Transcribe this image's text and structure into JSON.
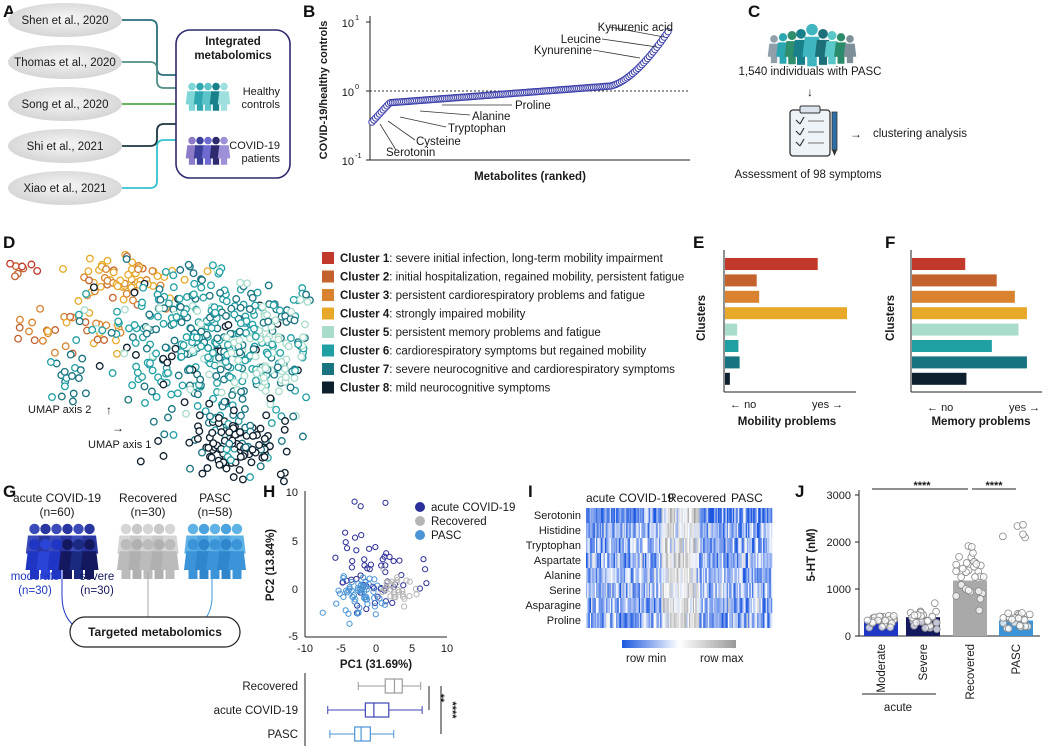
{
  "panel_labels": [
    "A",
    "B",
    "C",
    "D",
    "E",
    "F",
    "G",
    "H",
    "I",
    "J"
  ],
  "panelA": {
    "studies": [
      "Shen et al., 2020",
      "Thomas et al., 2020",
      "Song et al., 2020",
      "Shi et al., 2021",
      "Xiao et al., 2021"
    ],
    "box_title_1": "Integrated",
    "box_title_2": "metabolomics",
    "group1_line1": "Healthy",
    "group1_line2": "controls",
    "group2_line1": "COVID-19",
    "group2_line2": "patients",
    "line_colors": [
      "#2a6f7a",
      "#4f8f86",
      "#4ea84a",
      "#1c3640",
      "#35c2d0"
    ]
  },
  "panelB": {
    "ylabel": "COVID-19/healthy controls",
    "xlabel": "Metabolites (ranked)",
    "ytick_base": [
      "10",
      "10",
      "10"
    ],
    "ytick_exp": [
      "1",
      "0",
      "-1"
    ],
    "annotations": [
      "Kynurenic acid",
      "Leucine",
      "Kynurenine",
      "Proline",
      "Alanine",
      "Tryptophan",
      "Cysteine",
      "Serotonin"
    ],
    "chart_data": {
      "type": "scatter",
      "title": "",
      "xlabel": "Metabolites (ranked)",
      "ylabel": "COVID-19/healthy controls",
      "yscale": "log",
      "ylim": [
        0.1,
        10
      ],
      "reference_line": 1,
      "n_points": 160,
      "range": [
        0.35,
        7.2
      ]
    }
  },
  "panelC": {
    "people_text": "1,540 individuals with PASC",
    "assessment": "Assessment of 98 symptoms",
    "clustering": "clustering analysis"
  },
  "panelD": {
    "axis2": "UMAP axis 2",
    "axis1": "UMAP axis 1",
    "clusters": [
      {
        "name": "Cluster 1",
        "desc": ": severe initial infection, long-term mobility impairment",
        "color": "#c0392b"
      },
      {
        "name": "Cluster 2",
        "desc": ": initial hospitalization, regained mobility, persistent fatigue",
        "color": "#c4622d"
      },
      {
        "name": "Cluster 3",
        "desc": ": persistent cardiorespiratory problems and fatigue",
        "color": "#d98330"
      },
      {
        "name": "Cluster 4",
        "desc": ": strongly impaired mobility",
        "color": "#e8a92b"
      },
      {
        "name": "Cluster 5",
        "desc": ": persistent memory problems and fatigue",
        "color": "#a9dccb"
      },
      {
        "name": "Cluster 6",
        "desc": ": cardiorespiratory symptoms but regained mobility",
        "color": "#21a0a4"
      },
      {
        "name": "Cluster 7",
        "desc": ": severe neurocognitive and cardiorespiratory symptoms",
        "color": "#187380"
      },
      {
        "name": "Cluster 8",
        "desc": ": mild neurocognitive symptoms",
        "color": "#0e1f2e"
      }
    ]
  },
  "panelE": {
    "ylabel": "Clusters",
    "no": "no",
    "yes": "yes",
    "xlabel": "Mobility problems",
    "chart_data": {
      "type": "bar",
      "orientation": "horizontal",
      "categories": [
        "Cluster 1",
        "Cluster 2",
        "Cluster 3",
        "Cluster 4",
        "Cluster 5",
        "Cluster 6",
        "Cluster 7",
        "Cluster 8"
      ],
      "values": [
        0.76,
        0.26,
        0.28,
        1.0,
        0.1,
        0.11,
        0.12,
        0.04
      ],
      "xlabel": "Mobility problems",
      "ylabel": "Clusters"
    }
  },
  "panelF": {
    "ylabel": "Clusters",
    "no": "no",
    "yes": "yes",
    "xlabel": "Memory problems",
    "chart_data": {
      "type": "bar",
      "orientation": "horizontal",
      "categories": [
        "Cluster 1",
        "Cluster 2",
        "Cluster 3",
        "Cluster 4",
        "Cluster 5",
        "Cluster 6",
        "Cluster 7",
        "Cluster 8"
      ],
      "values": [
        0.44,
        0.7,
        0.85,
        0.95,
        0.88,
        0.66,
        0.95,
        0.45
      ],
      "xlabel": "Memory problems",
      "ylabel": "Clusters"
    }
  },
  "panelG": {
    "groups": [
      {
        "name": "acute COVID-19",
        "n": "(n=60)"
      },
      {
        "name": "Recovered",
        "n": "(n=30)"
      },
      {
        "name": "PASC",
        "n": "(n=58)"
      }
    ],
    "moderate": "moderate",
    "moderate_n": "(n=30)",
    "severe": "severe",
    "severe_n": "(n=30)",
    "targeted": "Targeted metabolomics"
  },
  "panelH": {
    "xlabel": "PC1 (31.69%)",
    "ylabel": "PC2 (13.84%)",
    "xticks": [
      "-10",
      "-5",
      "0",
      "5",
      "10"
    ],
    "yticks": [
      "10",
      "5",
      "0",
      "-5"
    ],
    "legend": [
      "acute COVID-19",
      "Recovered",
      "PASC"
    ],
    "box_groups": [
      "Recovered",
      "acute COVID-19",
      "PASC"
    ],
    "sig1": "**",
    "sig2": "****",
    "chart_data": {
      "type": "scatter",
      "xlabel": "PC1 (31.69%)",
      "ylabel": "PC2 (13.84%)",
      "xlim": [
        -10,
        10
      ],
      "ylim": [
        -5,
        10
      ],
      "series": [
        {
          "name": "acute COVID-19",
          "color": "#2b2f99",
          "n": 60
        },
        {
          "name": "Recovered",
          "color": "#b5b5b5",
          "n": 30
        },
        {
          "name": "PASC",
          "color": "#4a94d6",
          "n": 58
        }
      ],
      "boxplot_pc1": [
        {
          "name": "Recovered",
          "min": -2.5,
          "q1": 1.3,
          "median": 2.6,
          "q3": 3.7,
          "max": 6.3
        },
        {
          "name": "acute COVID-19",
          "min": -6.8,
          "q1": -1.5,
          "median": -0.3,
          "q3": 1.8,
          "max": 6.5
        },
        {
          "name": "PASC",
          "min": -6.5,
          "q1": -3.0,
          "median": -2.1,
          "q3": -0.8,
          "max": 2.5
        }
      ]
    }
  },
  "panelI": {
    "groups": [
      "acute COVID-19",
      "Recovered",
      "PASC"
    ],
    "rows": [
      "Serotonin",
      "Histidine",
      "Tryptophan",
      "Aspartate",
      "Alanine",
      "Serine",
      "Asparagine",
      "Proline"
    ],
    "legend_min": "row min",
    "legend_max": "row max",
    "chart_data": {
      "type": "heatmap",
      "rows": [
        "Serotonin",
        "Histidine",
        "Tryptophan",
        "Aspartate",
        "Alanine",
        "Serine",
        "Asparagine",
        "Proline"
      ],
      "column_groups": [
        {
          "name": "acute COVID-19",
          "n": 60
        },
        {
          "name": "Recovered",
          "n": 30
        },
        {
          "name": "PASC",
          "n": 58
        }
      ],
      "scale": [
        "row min",
        "row max"
      ]
    }
  },
  "panelJ": {
    "ylabel": "5-HT (nM)",
    "yticks": [
      "0",
      "1000",
      "2000",
      "3000"
    ],
    "categories": [
      "Moderate",
      "Severe",
      "Recovered",
      "PASC"
    ],
    "group_label": "acute",
    "sig": "****",
    "chart_data": {
      "type": "bar",
      "categories": [
        "Moderate",
        "Severe",
        "Recovered",
        "PASC"
      ],
      "values": [
        310,
        400,
        1180,
        330
      ],
      "colors": [
        "#1f36c4",
        "#14185e",
        "#a9a9a9",
        "#3b93d8"
      ],
      "ylabel": "5-HT (nM)",
      "ylim": [
        0,
        3000
      ],
      "significance": [
        "Moderate vs Recovered ****",
        "Recovered vs PASC ****"
      ]
    }
  }
}
